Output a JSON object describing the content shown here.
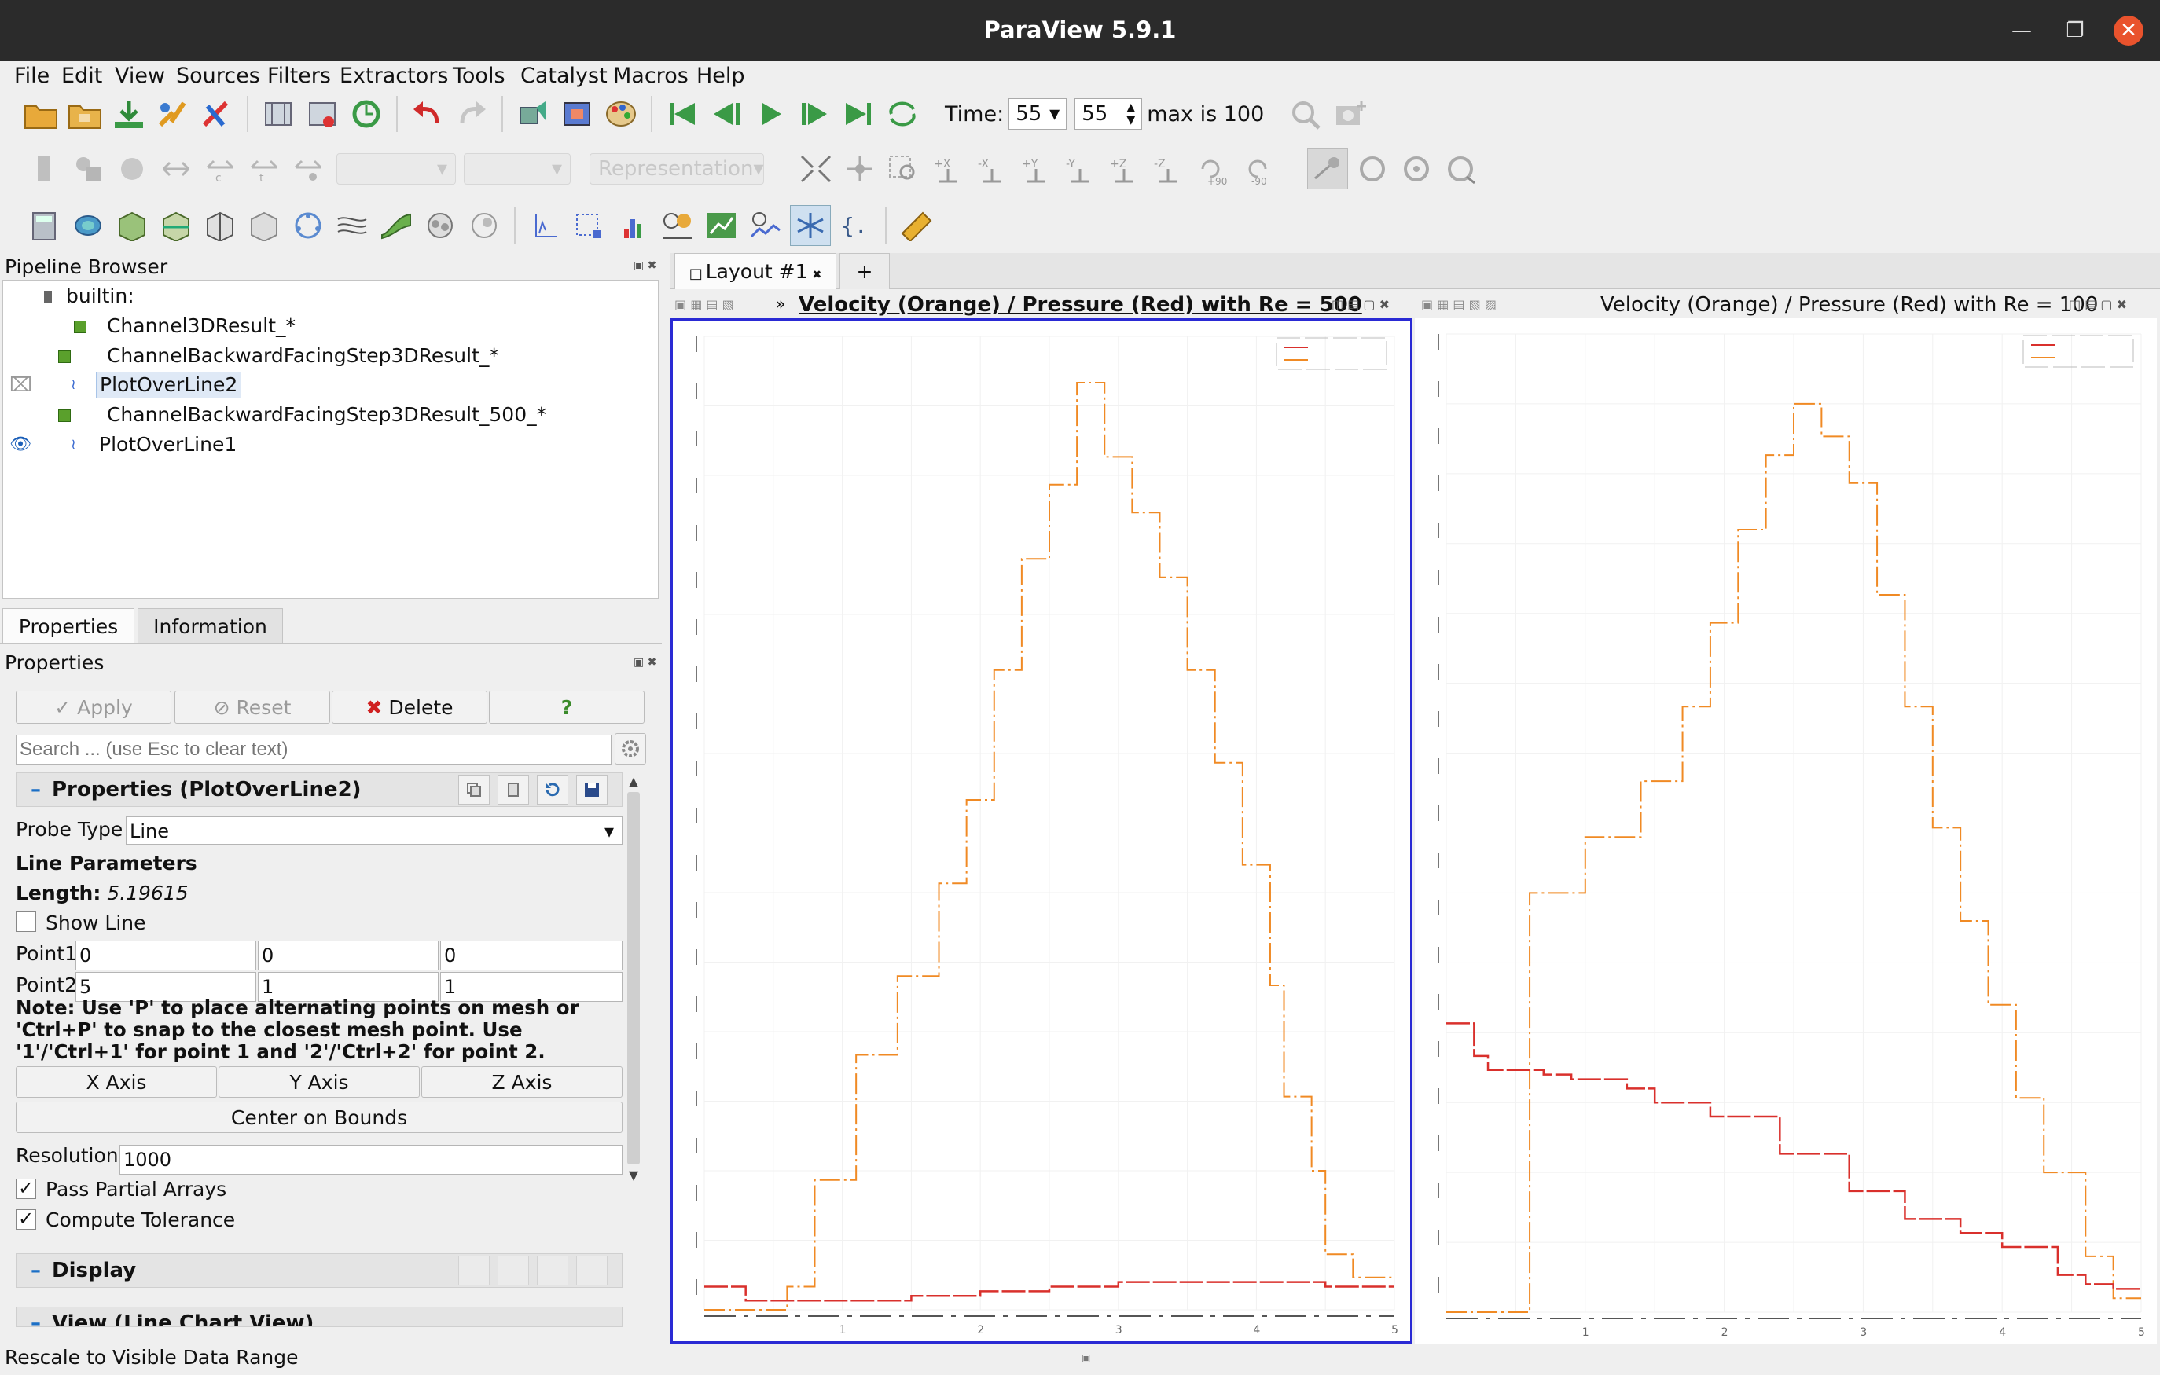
{
  "window": {
    "title": "ParaView 5.9.1"
  },
  "menu": [
    "File",
    "Edit",
    "View",
    "Sources",
    "Filters",
    "Extractors",
    "Tools",
    "Catalyst",
    "Macros",
    "Help"
  ],
  "toolbar": {
    "time_label": "Time:",
    "time_value": "55",
    "time_step": "55",
    "max_text": "max is 100",
    "representation": "Representation",
    "rot_plus": "+90",
    "rot_minus": "-90"
  },
  "pipeline": {
    "title": "Pipeline Browser",
    "items": [
      {
        "label": "builtin:"
      },
      {
        "label": "Channel3DResult_*"
      },
      {
        "label": "ChannelBackwardFacingStep3DResult_*"
      },
      {
        "label": "PlotOverLine2"
      },
      {
        "label": "ChannelBackwardFacingStep3DResult_500_*"
      },
      {
        "label": "PlotOverLine1"
      }
    ]
  },
  "tabs": {
    "properties": "Properties",
    "information": "Information"
  },
  "properties": {
    "panel_title": "Properties",
    "apply": "Apply",
    "reset": "Reset",
    "delete": "Delete",
    "help": "?",
    "search_placeholder": "Search ... (use Esc to clear text)",
    "section_title": "Properties (PlotOverLine2)",
    "probe_type_label": "Probe Type",
    "probe_type_value": "Line",
    "line_params": "Line Parameters",
    "length_label": "Length:",
    "length_value": "5.19615",
    "show_line": "Show Line",
    "point1_label": "Point1",
    "point1": [
      "0",
      "0",
      "0"
    ],
    "point2_label": "Point2",
    "point2": [
      "5",
      "1",
      "1"
    ],
    "note": "Note: Use 'P' to place alternating points on mesh or 'Ctrl+P' to snap to the closest mesh point. Use '1'/'Ctrl+1' for point 1 and '2'/'Ctrl+2' for point 2.",
    "x_axis": "X Axis",
    "y_axis": "Y Axis",
    "z_axis": "Z Axis",
    "center_on_bounds": "Center on Bounds",
    "resolution_label": "Resolution",
    "resolution_value": "1000",
    "pass_partial": "Pass Partial Arrays",
    "compute_tol": "Compute Tolerance",
    "display_section": "Display",
    "view_section": "View (Line Chart View)"
  },
  "layout": {
    "tab": "Layout #1",
    "add": "+"
  },
  "views": {
    "left_title": "Velocity (Orange) / Pressure (Red) with Re = 500",
    "right_title": "Velocity (Orange) / Pressure (Red) with Re = 100"
  },
  "status": {
    "text": "Rescale to Visible Data Range"
  },
  "colors": {
    "velocity": "#f08a24",
    "pressure": "#d9302c",
    "active_view_border": "#2a2ad4"
  },
  "chart_data": [
    {
      "type": "line",
      "title": "Velocity (Orange) / Pressure (Red) with Re = 500",
      "series": [
        {
          "x": [
            0,
            0.1,
            0.6,
            0.8,
            1.1,
            1.4,
            1.7,
            1.9,
            2.1,
            2.3,
            2.5,
            2.7,
            2.9,
            3.1,
            3.3,
            3.5,
            3.7,
            3.9,
            4.1,
            4.2,
            4.4,
            4.5,
            4.7,
            5.0
          ],
          "values": [
            0.0,
            0.0,
            0.05,
            0.28,
            0.55,
            0.72,
            0.92,
            1.1,
            1.38,
            1.62,
            1.78,
            2.0,
            1.84,
            1.72,
            1.58,
            1.38,
            1.18,
            0.96,
            0.7,
            0.46,
            0.3,
            0.12,
            0.07,
            0.07
          ]
        },
        {
          "x": [
            0,
            0.3,
            0.6,
            1.0,
            1.5,
            2.0,
            2.5,
            3.0,
            3.5,
            4.0,
            4.5,
            5.0
          ],
          "values": [
            0.05,
            0.02,
            0.02,
            0.02,
            0.03,
            0.04,
            0.05,
            0.06,
            0.06,
            0.06,
            0.05,
            0.05
          ]
        }
      ],
      "xlim": [
        0,
        5
      ],
      "xticks": [
        "1",
        "2",
        "3",
        "4",
        "5"
      ]
    },
    {
      "type": "line",
      "title": "Velocity (Orange) / Pressure (Red) with Re = 100",
      "series": [
        {
          "x": [
            0,
            0.5,
            0.6,
            1.0,
            1.4,
            1.7,
            1.9,
            2.1,
            2.3,
            2.5,
            2.7,
            2.9,
            3.1,
            3.3,
            3.5,
            3.7,
            3.9,
            4.1,
            4.3,
            4.6,
            4.8,
            5.0
          ],
          "values": [
            0.0,
            0.0,
            0.9,
            1.02,
            1.14,
            1.3,
            1.48,
            1.68,
            1.84,
            1.95,
            1.88,
            1.78,
            1.54,
            1.3,
            1.04,
            0.84,
            0.66,
            0.46,
            0.3,
            0.12,
            0.03,
            0.03
          ]
        },
        {
          "x": [
            0,
            0.2,
            0.3,
            0.7,
            0.9,
            1.3,
            1.5,
            1.9,
            2.4,
            2.9,
            3.3,
            3.7,
            4.0,
            4.4,
            4.6,
            4.8,
            5.0
          ],
          "values": [
            0.62,
            0.55,
            0.52,
            0.51,
            0.5,
            0.48,
            0.45,
            0.42,
            0.34,
            0.26,
            0.2,
            0.17,
            0.14,
            0.08,
            0.06,
            0.05,
            0.05
          ]
        }
      ],
      "xlim": [
        0,
        5
      ],
      "xticks": [
        "1",
        "2",
        "3",
        "4",
        "5"
      ]
    }
  ]
}
